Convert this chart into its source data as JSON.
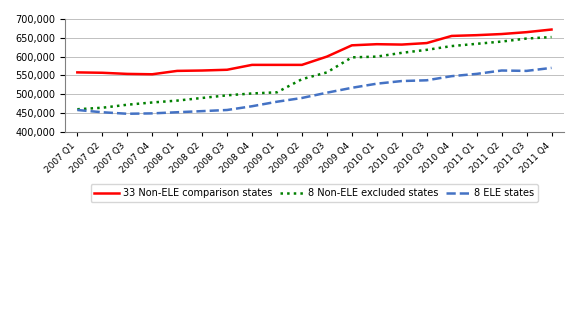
{
  "x_labels": [
    "2007 Q1",
    "2007 Q2",
    "2007 Q3",
    "2007 Q4",
    "2008 Q1",
    "2008 Q2",
    "2008 Q3",
    "2008 Q4",
    "2009 Q1",
    "2009 Q2",
    "2009 Q3",
    "2009 Q4",
    "2010 Q1",
    "2010 Q2",
    "2010 Q3",
    "2010 Q4",
    "2011 Q1",
    "2011 Q2",
    "2011 Q3",
    "2011 Q4"
  ],
  "ele_states": [
    458000,
    452000,
    448000,
    449000,
    452000,
    455000,
    458000,
    468000,
    480000,
    490000,
    504000,
    517000,
    528000,
    535000,
    537000,
    548000,
    554000,
    563000,
    562000,
    570000
  ],
  "non_ele_comparison": [
    558000,
    557000,
    554000,
    553000,
    562000,
    563000,
    565000,
    578000,
    578000,
    578000,
    600000,
    630000,
    633000,
    632000,
    636000,
    655000,
    657000,
    660000,
    665000,
    672000
  ],
  "non_ele_excluded": [
    460000,
    464000,
    472000,
    478000,
    483000,
    490000,
    497000,
    502000,
    505000,
    540000,
    558000,
    598000,
    600000,
    610000,
    618000,
    628000,
    634000,
    640000,
    648000,
    652000
  ],
  "ele_color": "#4472C4",
  "comparison_color": "#FF0000",
  "excluded_color": "#008000",
  "ylim": [
    400000,
    700000
  ],
  "ytick_step": 50000,
  "legend_labels": [
    "8 ELE states",
    "33 Non-ELE comparison states",
    "8 Non-ELE excluded states"
  ]
}
